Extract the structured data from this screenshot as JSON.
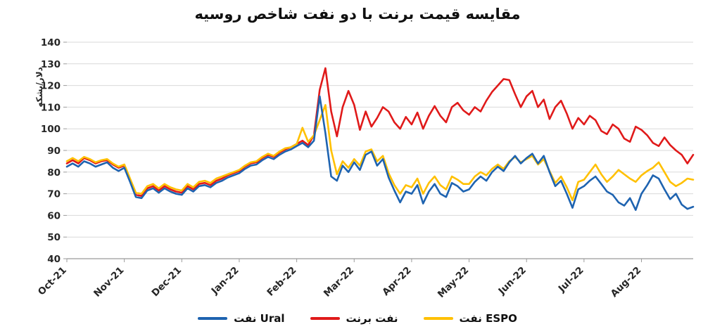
{
  "chart_data": {
    "type": "line",
    "title": "مقایسه قیمت برنت با دو نفت شاخص روسیه",
    "xlabel": "",
    "ylabel": "دلار/بشکه",
    "ylim": [
      40,
      140
    ],
    "ytick_step": 10,
    "grid": "horizontal",
    "legend_position": "bottom",
    "x_tick_labels": [
      "Oct-21",
      "Nov-21",
      "Dec-21",
      "Jan-22",
      "Feb-22",
      "Mar-22",
      "Apr-22",
      "May-22",
      "Jun-22",
      "Jul-22",
      "Aug-22"
    ],
    "x_tick_indices": [
      0,
      10,
      20,
      30,
      40,
      50,
      60,
      70,
      80,
      90,
      100
    ],
    "n_points": 110,
    "draw_order": [
      1,
      2,
      0
    ],
    "axis_color": "#9b9b9b",
    "grid_color": "#d9d9d9",
    "series": [
      {
        "id": "ural",
        "name": "نفت Ural",
        "color": "#1e63b0",
        "values": [
          82.5,
          84,
          82.5,
          85,
          84,
          82.5,
          83.5,
          84.5,
          82,
          80.5,
          82,
          75.5,
          68.5,
          68,
          71.5,
          72.5,
          70.5,
          72.5,
          71,
          70,
          69.5,
          72.5,
          71,
          73.5,
          74,
          73,
          75,
          76,
          77.5,
          78.5,
          79.5,
          81.5,
          83,
          83.5,
          85.5,
          87,
          86,
          88,
          89.5,
          90.5,
          92,
          93.5,
          91.5,
          94.5,
          115,
          98,
          78,
          76,
          83,
          80,
          84.5,
          81,
          88,
          89.5,
          83,
          86,
          77.5,
          71.5,
          66,
          71,
          70,
          74,
          65.5,
          71,
          74.5,
          70,
          68.5,
          75,
          73.5,
          71,
          72,
          75.5,
          78,
          76,
          80,
          82.5,
          80.5,
          84.5,
          87.5,
          84,
          86.5,
          88.5,
          84,
          87.5,
          80,
          73.5,
          76,
          70,
          63.5,
          72,
          73.5,
          76,
          78,
          74.5,
          71,
          69.5,
          66,
          64.5,
          68,
          62.5,
          70,
          74,
          78.5,
          77,
          72,
          67.5,
          70,
          65,
          63,
          64
        ]
      },
      {
        "id": "brent",
        "name": "نفت برنت",
        "color": "#e01a1a",
        "values": [
          84,
          85.5,
          84,
          86.5,
          85.5,
          84,
          85,
          85.5,
          83.5,
          82,
          83,
          76.5,
          69.5,
          69,
          72.5,
          73.5,
          71.5,
          73.5,
          72,
          71,
          70.5,
          73.5,
          72,
          74.5,
          75,
          74,
          76,
          77,
          78.5,
          79.5,
          80.5,
          82.5,
          84,
          84.5,
          86.5,
          88,
          87,
          89,
          90.5,
          91.5,
          93,
          94.5,
          92.5,
          97,
          118,
          128,
          108,
          96.5,
          110,
          117.5,
          111,
          99.5,
          108,
          101,
          105,
          110,
          108,
          103,
          100,
          105.5,
          102,
          107.5,
          100,
          106,
          110.5,
          106,
          103,
          110,
          112,
          108.5,
          106.5,
          110,
          108,
          113,
          117,
          120,
          123,
          122.5,
          116,
          110,
          115,
          117.5,
          110,
          113.5,
          104.5,
          110,
          113,
          107,
          100,
          105,
          102,
          106,
          104,
          99,
          97.5,
          102,
          100,
          95.5,
          94,
          101,
          99.5,
          97,
          93.5,
          92,
          96,
          92.5,
          90,
          88,
          84,
          88
        ]
      },
      {
        "id": "espo",
        "name": "نفت ESPO",
        "color": "#ffc000",
        "values": [
          85,
          86.5,
          85,
          87,
          86,
          84.5,
          85.5,
          86,
          84,
          82.5,
          83.5,
          77,
          70.5,
          70,
          73.5,
          74.5,
          72.5,
          74.5,
          73,
          72,
          71.5,
          74.5,
          73,
          75.5,
          76,
          75,
          77,
          78,
          79,
          80,
          81,
          83,
          84.5,
          85,
          87,
          88.5,
          87.5,
          89.5,
          91,
          91.5,
          93,
          100.5,
          94,
          97,
          104,
          111,
          90,
          79,
          85,
          82,
          86,
          83,
          89.5,
          90.5,
          85,
          87.5,
          79.5,
          74,
          70,
          74,
          73,
          77,
          70,
          75,
          78,
          74,
          72,
          78,
          76.5,
          74.5,
          74.5,
          78,
          80,
          78.5,
          81.5,
          83.5,
          81.5,
          85,
          87,
          84.5,
          86,
          87.5,
          83.5,
          86,
          80.5,
          75,
          78,
          73,
          67,
          75.5,
          76.5,
          80,
          83.5,
          79,
          75.5,
          78,
          81,
          79,
          77,
          75.5,
          78.5,
          80.5,
          82,
          84.5,
          80,
          75.5,
          73.5,
          75,
          77,
          76.5
        ]
      }
    ]
  }
}
